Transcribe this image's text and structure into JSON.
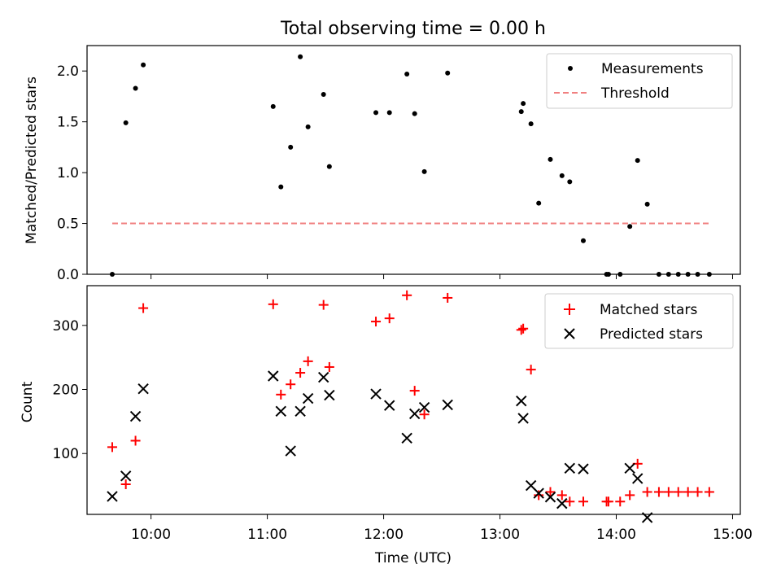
{
  "title": "Total observing time = 0.00 h",
  "chart_data": [
    {
      "type": "scatter",
      "ylabel": "Matched/Predicted stars",
      "ylim": [
        0,
        2.25
      ],
      "xlim": [
        "09:27",
        "15:04"
      ],
      "yticks": [
        0.0,
        0.5,
        1.0,
        1.5,
        2.0
      ],
      "ytick_labels": [
        "0.0",
        "0.5",
        "1.0",
        "1.5",
        "2.0"
      ],
      "legend_position": "top-right",
      "series": [
        {
          "name": "Measurements",
          "color": "#000000",
          "marker": "dot",
          "x": [
            "09:40",
            "09:47",
            "09:52",
            "09:56",
            "11:03",
            "11:07",
            "11:12",
            "11:17",
            "11:21",
            "11:29",
            "11:32",
            "11:56",
            "12:03",
            "12:12",
            "12:16",
            "12:21",
            "12:33",
            "13:11",
            "13:12",
            "13:16",
            "13:20",
            "13:26",
            "13:32",
            "13:36",
            "13:43",
            "13:55",
            "13:56",
            "14:02",
            "14:07",
            "14:11",
            "14:16",
            "14:22",
            "14:27",
            "14:32",
            "14:37",
            "14:42",
            "14:48"
          ],
          "y": [
            0.0,
            1.49,
            1.83,
            2.06,
            1.65,
            0.86,
            1.25,
            2.14,
            1.45,
            1.77,
            1.06,
            1.59,
            1.59,
            1.97,
            1.58,
            1.01,
            1.98,
            1.6,
            1.68,
            1.48,
            0.7,
            1.13,
            0.97,
            0.91,
            0.33,
            0.0,
            0.0,
            0.0,
            0.47,
            1.12,
            0.69,
            0.0,
            0.0,
            0.0,
            0.0,
            0.0,
            0.0
          ]
        },
        {
          "name": "Threshold",
          "color": "#f08080",
          "line_style": "dashed",
          "x": [
            "09:40",
            "14:48"
          ],
          "y": [
            0.5,
            0.5
          ]
        }
      ]
    },
    {
      "type": "scatter",
      "xlabel": "Time (UTC)",
      "ylabel": "Count",
      "ylim": [
        5,
        362
      ],
      "xlim": [
        "09:27",
        "15:04"
      ],
      "xticks": [
        "10:00",
        "11:00",
        "12:00",
        "13:00",
        "14:00",
        "15:00"
      ],
      "yticks": [
        100,
        200,
        300
      ],
      "ytick_labels": [
        "100",
        "200",
        "300"
      ],
      "legend_position": "top-right",
      "series": [
        {
          "name": "Matched stars",
          "color": "#ff0000",
          "marker": "plus",
          "x": [
            "09:40",
            "09:47",
            "09:52",
            "09:56",
            "11:03",
            "11:07",
            "11:12",
            "11:17",
            "11:21",
            "11:29",
            "11:32",
            "11:56",
            "12:03",
            "12:12",
            "12:16",
            "12:21",
            "12:33",
            "13:11",
            "13:12",
            "13:16",
            "13:20",
            "13:26",
            "13:32",
            "13:36",
            "13:43",
            "13:55",
            "13:56",
            "14:02",
            "14:07",
            "14:11",
            "14:16",
            "14:22",
            "14:27",
            "14:32",
            "14:37",
            "14:42",
            "14:48"
          ],
          "y": [
            110,
            52,
            120,
            327,
            333,
            192,
            208,
            226,
            244,
            332,
            235,
            306,
            311,
            347,
            198,
            161,
            343,
            293,
            295,
            231,
            35,
            40,
            35,
            25,
            25,
            25,
            25,
            25,
            35,
            84,
            40,
            40,
            40,
            40,
            40,
            40,
            40
          ]
        },
        {
          "name": "Predicted stars",
          "color": "#000000",
          "marker": "x",
          "x": [
            "09:40",
            "09:47",
            "09:52",
            "09:56",
            "11:03",
            "11:07",
            "11:12",
            "11:17",
            "11:21",
            "11:29",
            "11:32",
            "11:56",
            "12:03",
            "12:12",
            "12:16",
            "12:21",
            "12:33",
            "13:11",
            "13:12",
            "13:16",
            "13:20",
            "13:26",
            "13:32",
            "13:36",
            "13:43",
            "14:07",
            "14:11",
            "14:16"
          ],
          "y": [
            33,
            65,
            158,
            201,
            221,
            166,
            104,
            166,
            186,
            219,
            191,
            193,
            175,
            124,
            162,
            172,
            176,
            182,
            155,
            50,
            38,
            32,
            22,
            77,
            76,
            77,
            61,
            0
          ]
        }
      ]
    }
  ]
}
